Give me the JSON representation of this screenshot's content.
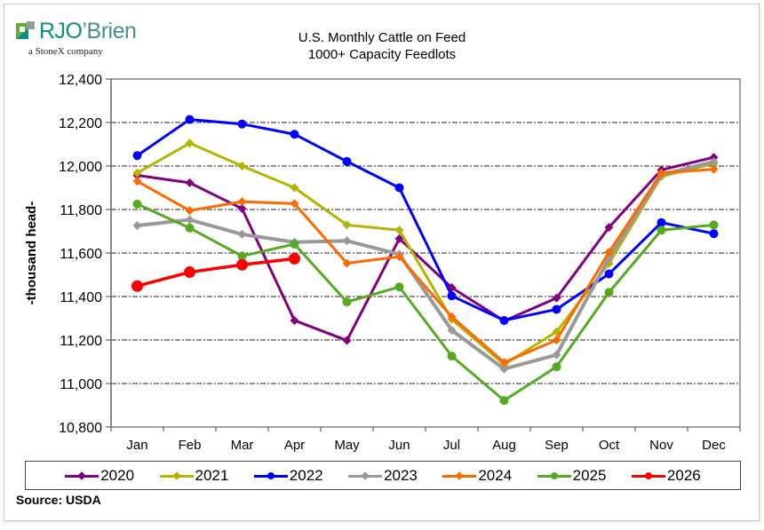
{
  "logo": {
    "brand_rjo": "RJO",
    "brand_brien": "’Brien",
    "tagline": "a StoneX company"
  },
  "source": "Source: USDA",
  "chart_data": {
    "type": "line",
    "title": "U.S. Monthly Cattle on Feed",
    "subtitle": "1000+ Capacity Feedlots",
    "xlabel": "",
    "ylabel": "-thousand head-",
    "ylim": [
      10800,
      12400
    ],
    "yticks": [
      10800,
      11000,
      11200,
      11400,
      11600,
      11800,
      12000,
      12200,
      12400
    ],
    "ytick_labels": [
      "10,800",
      "11,000",
      "11,200",
      "11,400",
      "11,600",
      "11,800",
      "12,000",
      "12,200",
      "12,400"
    ],
    "grid": true,
    "legend_position": "bottom",
    "categories": [
      "Jan",
      "Feb",
      "Mar",
      "Apr",
      "May",
      "Jun",
      "Jul",
      "Aug",
      "Sep",
      "Oct",
      "Nov",
      "Dec"
    ],
    "series": [
      {
        "name": "2020",
        "color": "#800080",
        "marker": "diamond",
        "values": [
          11957,
          11923,
          11804,
          11290,
          11198,
          11666,
          11441,
          11288,
          11393,
          11718,
          11982,
          12040
        ]
      },
      {
        "name": "2021",
        "color": "#b5b400",
        "marker": "diamond",
        "values": [
          11968,
          12105,
          12000,
          11900,
          11729,
          11705,
          11295,
          11088,
          11238,
          11552,
          11952,
          12012
        ]
      },
      {
        "name": "2022",
        "color": "#0000ff",
        "marker": "circle",
        "values": [
          12048,
          12214,
          12193,
          12146,
          12021,
          11900,
          11403,
          11290,
          11341,
          11504,
          11740,
          11689
        ]
      },
      {
        "name": "2023",
        "color": "#999999",
        "marker": "diamond",
        "values": [
          11726,
          11753,
          11686,
          11650,
          11656,
          11594,
          11245,
          11067,
          11132,
          11577,
          11960,
          12020
        ]
      },
      {
        "name": "2024",
        "color": "#ff6a00",
        "marker": "diamond",
        "values": [
          11930,
          11795,
          11836,
          11827,
          11553,
          11583,
          11307,
          11097,
          11200,
          11604,
          11968,
          11985
        ]
      },
      {
        "name": "2025",
        "color": "#55aa22",
        "marker": "circle",
        "values": [
          11825,
          11715,
          11586,
          11641,
          11375,
          11444,
          11126,
          10922,
          11077,
          11419,
          11705,
          11729
        ]
      },
      {
        "name": "2026",
        "color": "#ff0000",
        "marker": "circle",
        "values": [
          11448,
          11512,
          11546,
          11574,
          null,
          null,
          null,
          null,
          null,
          null,
          null,
          null
        ]
      }
    ]
  }
}
